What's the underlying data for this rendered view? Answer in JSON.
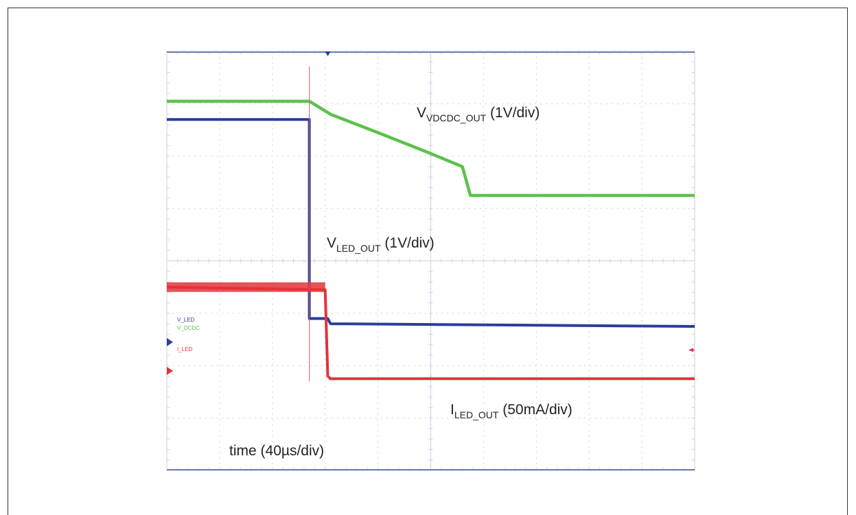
{
  "chart_data": {
    "type": "line",
    "title": "",
    "grid": true,
    "divisions": {
      "x": 10,
      "y": 8
    },
    "xlabel": {
      "main": "time",
      "rest": " (40µs/div)"
    },
    "xlim": [
      0,
      10
    ],
    "ylim": [
      0,
      8
    ],
    "series": [
      {
        "name": "V_DCDC",
        "color": "#5cc24a",
        "label": {
          "main": "V",
          "sub": "VDCDC_OUT",
          "rest": " (1V/div)"
        },
        "points": [
          [
            0,
            7.05
          ],
          [
            2.7,
            7.05
          ],
          [
            3.1,
            6.8
          ],
          [
            4.0,
            6.45
          ],
          [
            5.0,
            6.05
          ],
          [
            5.6,
            5.8
          ],
          [
            5.75,
            5.25
          ],
          [
            10,
            5.25
          ]
        ]
      },
      {
        "name": "V_LED",
        "color": "#2a3c9e",
        "label": {
          "main": "V",
          "sub": "LED_OUT",
          "rest": " (1V/div)"
        },
        "points": [
          [
            0,
            6.7
          ],
          [
            2.7,
            6.7
          ],
          [
            2.7,
            2.9
          ],
          [
            3.05,
            2.9
          ],
          [
            3.1,
            2.8
          ],
          [
            10,
            2.75
          ]
        ]
      },
      {
        "name": "I_LED",
        "color": "#e0343a",
        "label": {
          "main": "I",
          "sub": "LED_OUT",
          "rest": " (50mA/div)"
        },
        "points": [
          [
            0,
            3.5
          ],
          [
            3.0,
            3.45
          ],
          [
            3.05,
            1.8
          ],
          [
            3.1,
            1.75
          ],
          [
            10,
            1.75
          ]
        ]
      }
    ],
    "legend": {
      "placement": "left",
      "entries": [
        {
          "text": "V_LED",
          "color": "#2a3c9e"
        },
        {
          "text": "V_DCDC",
          "color": "#5cc24a"
        },
        {
          "text": "I_LED",
          "color": "#e0343a"
        }
      ]
    },
    "markers": {
      "trigger_x": 3.05,
      "cursor_x": 2.7,
      "ch_offsets": [
        {
          "name": "V_LED",
          "y": 2.45,
          "color": "#2a3c9e"
        },
        {
          "name": "I_LED",
          "y": 1.9,
          "color": "#e0343a"
        }
      ],
      "trigger_level": {
        "y": 2.3,
        "color": "#e0343a"
      }
    }
  },
  "colors": {
    "grid": "#c8d2e0",
    "frame": "#6a7fb0",
    "cursor": "#d06060"
  }
}
